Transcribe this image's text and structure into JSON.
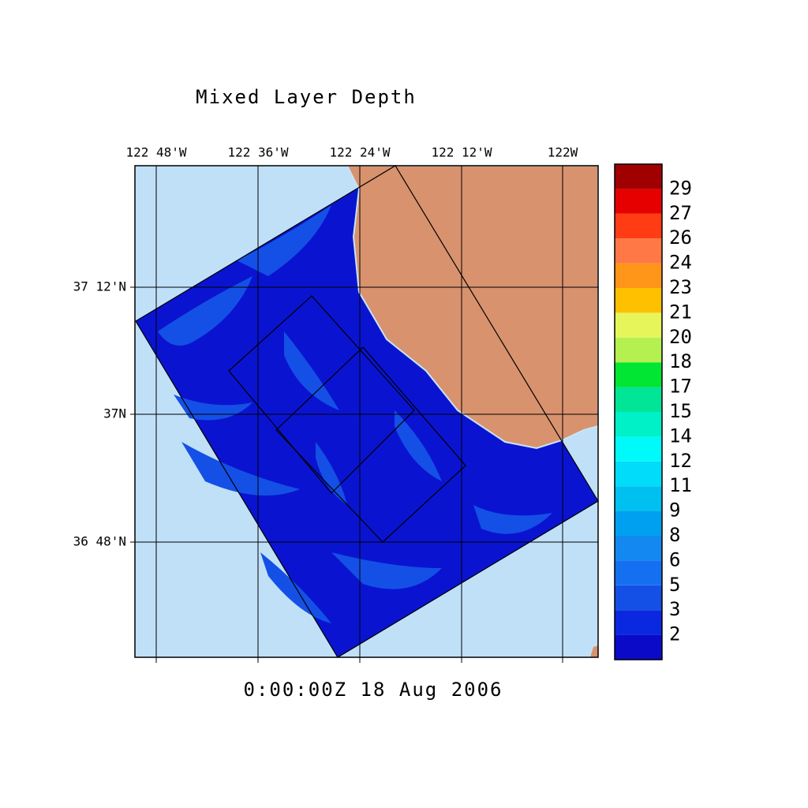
{
  "title": "Mixed Layer Depth",
  "time_label": "0:00:00Z  18 Aug 2006",
  "lon_labels": [
    "122 48'W",
    "122 36'W",
    "122 24'W",
    "122 12'W",
    "122W"
  ],
  "lat_labels": [
    "37 12'N",
    "37N",
    "36 48'N"
  ],
  "colorbar": {
    "labels": [
      2,
      3,
      5,
      6,
      8,
      9,
      11,
      12,
      14,
      15,
      17,
      18,
      20,
      21,
      23,
      24,
      26,
      27,
      29
    ],
    "colors": [
      "#0a0ac8",
      "#0a28e0",
      "#1450e6",
      "#1470f0",
      "#1288f0",
      "#00a0f0",
      "#00c0f0",
      "#00dcfa",
      "#00fafa",
      "#00f0c8",
      "#00e696",
      "#00e632",
      "#b4f050",
      "#e6f55a",
      "#ffc000",
      "#ff9619",
      "#ff7846",
      "#ff3c14",
      "#e60000",
      "#a00000"
    ]
  }
}
